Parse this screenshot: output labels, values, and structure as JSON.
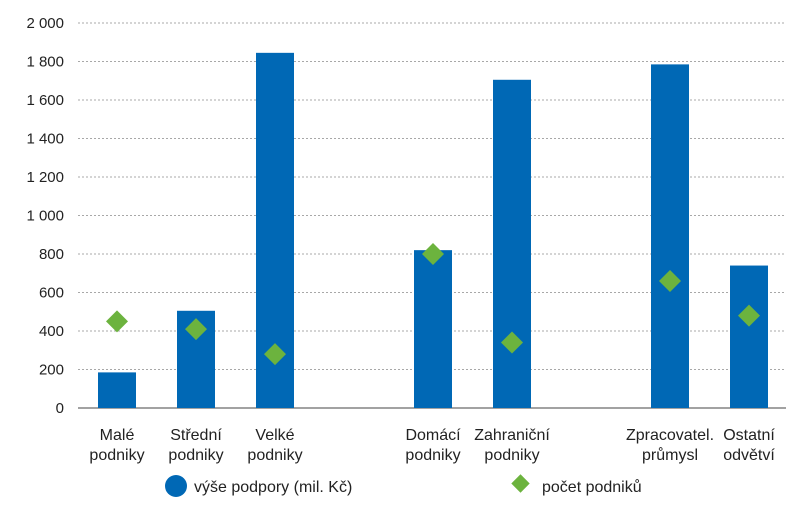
{
  "chart_data": {
    "type": "bar",
    "title": "",
    "xlabel": "",
    "ylabel": "",
    "ylim": [
      0,
      2000
    ],
    "yticks": [
      "0",
      "200",
      "400",
      "600",
      "800",
      "1 000",
      "1 200",
      "1 400",
      "1 600",
      "1 800",
      "2 000"
    ],
    "ytick_values": [
      0,
      200,
      400,
      600,
      800,
      1000,
      1200,
      1400,
      1600,
      1800,
      2000
    ],
    "grid": true,
    "legend_position": "bottom",
    "categories": [
      [
        "Malé",
        "podniky"
      ],
      [
        "Střední",
        "podniky"
      ],
      [
        "Velké",
        "podniky"
      ],
      [
        "Domácí",
        "podniky"
      ],
      [
        "Zahraniční",
        "podniky"
      ],
      [
        "Zpracovatel.",
        "průmysl"
      ],
      [
        "Ostatní",
        "odvětví"
      ]
    ],
    "groups": [
      [
        0,
        1,
        2
      ],
      [
        3,
        4
      ],
      [
        5,
        6
      ]
    ],
    "series": [
      {
        "name": "výše podpory (mil. Kč)",
        "type": "bar",
        "color": "#0068b5",
        "values": [
          185,
          505,
          1845,
          820,
          1705,
          1785,
          740
        ]
      },
      {
        "name": "počet podniků",
        "type": "scatter",
        "marker": "diamond",
        "color": "#6cb33e",
        "values": [
          450,
          410,
          280,
          800,
          340,
          660,
          480
        ]
      }
    ]
  }
}
